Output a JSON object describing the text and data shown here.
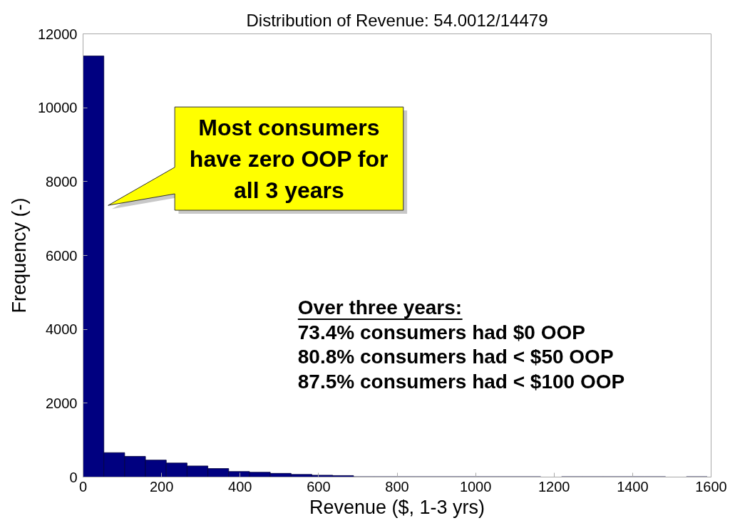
{
  "chart_data": {
    "type": "histogram",
    "title": "Distribution of Revenue: 54.0012/14479",
    "xlabel": "Revenue ($, 1-3 yrs)",
    "ylabel": "Frequency (-)",
    "bins": [
      0,
      53,
      106,
      159,
      212,
      265,
      318,
      371,
      424,
      477,
      530,
      583,
      636,
      689,
      742,
      795,
      848,
      901,
      954,
      1007,
      1060,
      1113,
      1166,
      1219,
      1272,
      1325,
      1378,
      1431,
      1484,
      1537,
      1590
    ],
    "values": [
      11400,
      660,
      560,
      460,
      380,
      300,
      230,
      150,
      130,
      100,
      70,
      50,
      40,
      10,
      10,
      10,
      10,
      10,
      10,
      10,
      10,
      10,
      0,
      10,
      10,
      10,
      10,
      10,
      0,
      10
    ],
    "color": "#000080",
    "xlim": [
      0,
      1600
    ],
    "ylim": [
      0,
      12000
    ],
    "xticks": [
      0,
      200,
      400,
      600,
      800,
      1000,
      1200,
      1400,
      1600
    ],
    "yticks": [
      0,
      2000,
      4000,
      6000,
      8000,
      10000,
      12000
    ],
    "annotations": [
      "Most consumers\nhave zero OOP for\nall 3 years",
      "Over three years:",
      "73.4% consumers had $0 OOP",
      "80.8% consumers had < $50 OOP",
      "87.5% consumers had < $100 OOP"
    ]
  }
}
